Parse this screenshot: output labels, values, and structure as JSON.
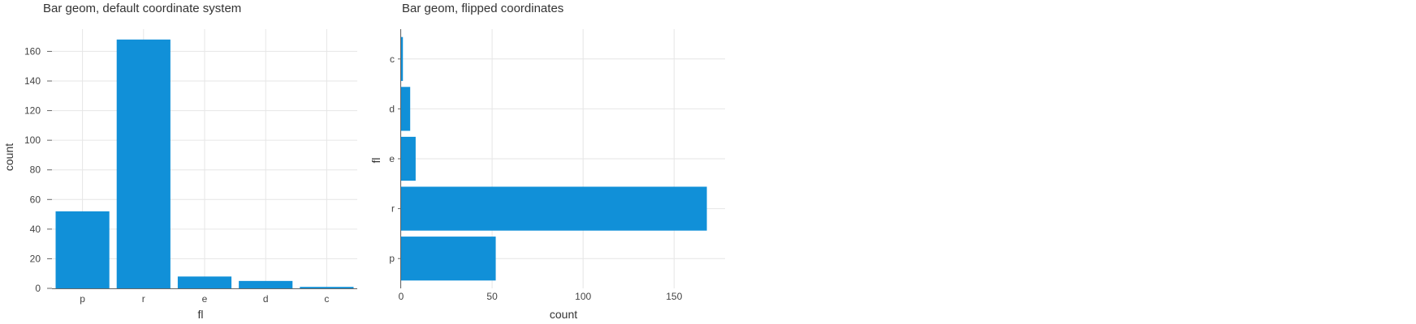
{
  "colors": {
    "bar": "#1190d8",
    "grid": "#e6e6e6",
    "axis": "#666666",
    "text": "#333333"
  },
  "chart_data": [
    {
      "type": "bar",
      "orientation": "vertical",
      "title": "Bar geom, default coordinate system",
      "xlabel": "fl",
      "ylabel": "count",
      "categories": [
        "p",
        "r",
        "e",
        "d",
        "c"
      ],
      "values": [
        52,
        168,
        8,
        5,
        1
      ],
      "ylim": [
        0,
        175
      ],
      "yticks": [
        0,
        20,
        40,
        60,
        80,
        100,
        120,
        140,
        160
      ],
      "grid": true,
      "legend": "none"
    },
    {
      "type": "bar",
      "orientation": "horizontal",
      "title": "Bar geom, flipped coordinates",
      "xlabel": "count",
      "ylabel": "fl",
      "categories": [
        "p",
        "r",
        "e",
        "d",
        "c"
      ],
      "values": [
        52,
        168,
        8,
        5,
        1
      ],
      "xlim": [
        0,
        178
      ],
      "xticks": [
        0,
        50,
        100,
        150
      ],
      "grid": true,
      "legend": "none"
    }
  ]
}
